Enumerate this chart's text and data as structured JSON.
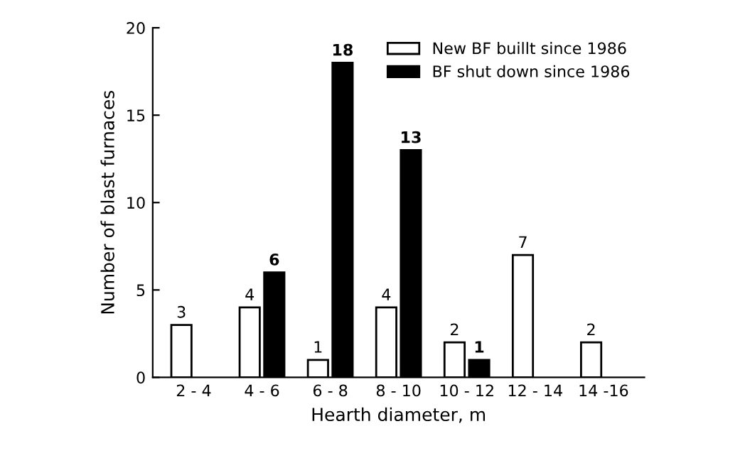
{
  "chart_data": {
    "type": "bar",
    "xlabel": "Hearth diameter, m",
    "ylabel": "Number of blast furnaces",
    "categories": [
      "2 - 4",
      "4 - 6",
      "6 - 8",
      "8 - 10",
      "10 - 12",
      "12 - 14",
      "14 -16"
    ],
    "series": [
      {
        "name": "New BF buillt since 1986",
        "color": "#ffffff",
        "values": [
          3,
          4,
          1,
          4,
          2,
          7,
          2
        ],
        "value_labels": [
          "3",
          "4",
          "1",
          "4",
          "2",
          "7",
          "2"
        ]
      },
      {
        "name": "BF shut down since 1986",
        "color": "#000000",
        "values": [
          null,
          6,
          18,
          13,
          1,
          null,
          null
        ],
        "value_labels": [
          null,
          "6",
          "18",
          "13",
          "1",
          null,
          null
        ]
      }
    ],
    "ylim": [
      0,
      20
    ],
    "yticks": [
      0,
      5,
      10,
      15,
      20
    ],
    "legend": "top right",
    "grid": false
  }
}
